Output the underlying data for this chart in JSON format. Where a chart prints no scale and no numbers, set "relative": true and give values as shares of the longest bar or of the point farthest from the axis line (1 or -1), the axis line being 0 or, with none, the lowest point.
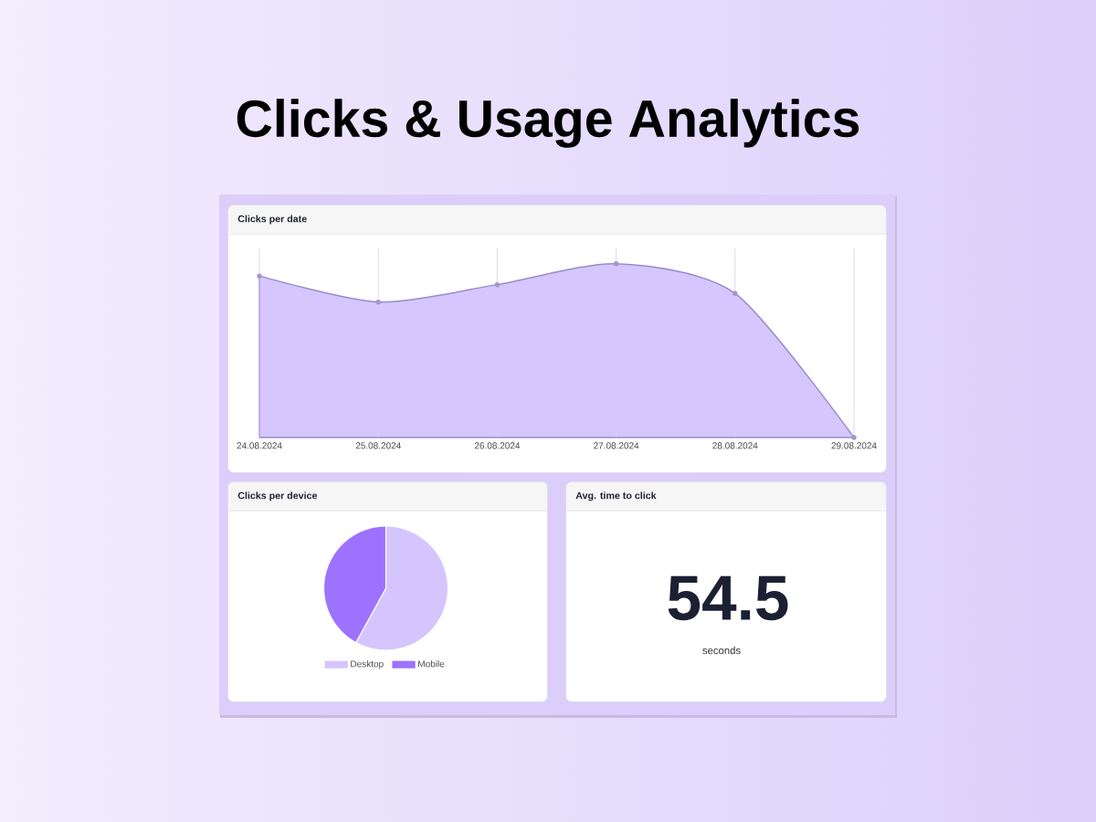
{
  "chart_data": [
    {
      "type": "area",
      "title": "Clicks & Usage Analytics",
      "subtitle": "Clicks per date",
      "categories": [
        "24.08.2024",
        "25.08.2024",
        "26.08.2024",
        "27.08.2024",
        "28.08.2024",
        "29.08.2024"
      ],
      "values": [
        0.93,
        0.78,
        0.88,
        1,
        0.83,
        0
      ],
      "color": "#d5c6fe",
      "relative": true,
      "grid": "x",
      "marker": "circle"
    },
    {
      "type": "pie",
      "title": "Clicks per device",
      "categories": [
        "Desktop",
        "Mobile"
      ],
      "values": [
        58,
        42
      ],
      "colors": [
        "#d5c5ff",
        "#9d72ff"
      ],
      "legend": "bottom"
    },
    {
      "type": "other",
      "title": "Avg. time to click",
      "annotations": [
        "54.5",
        "seconds"
      ]
    }
  ]
}
